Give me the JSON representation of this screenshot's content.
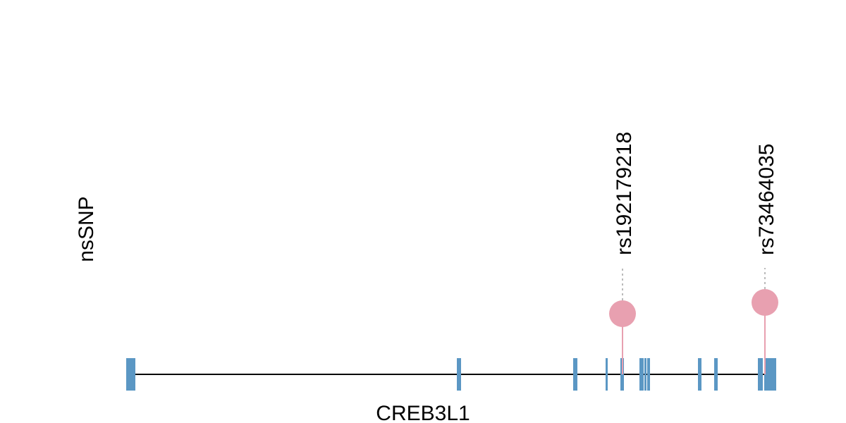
{
  "track_label": "nsSNP",
  "gene_name": "CREB3L1",
  "snps": [
    {
      "label": "rs192179218"
    },
    {
      "label": "rs73464035"
    }
  ]
}
